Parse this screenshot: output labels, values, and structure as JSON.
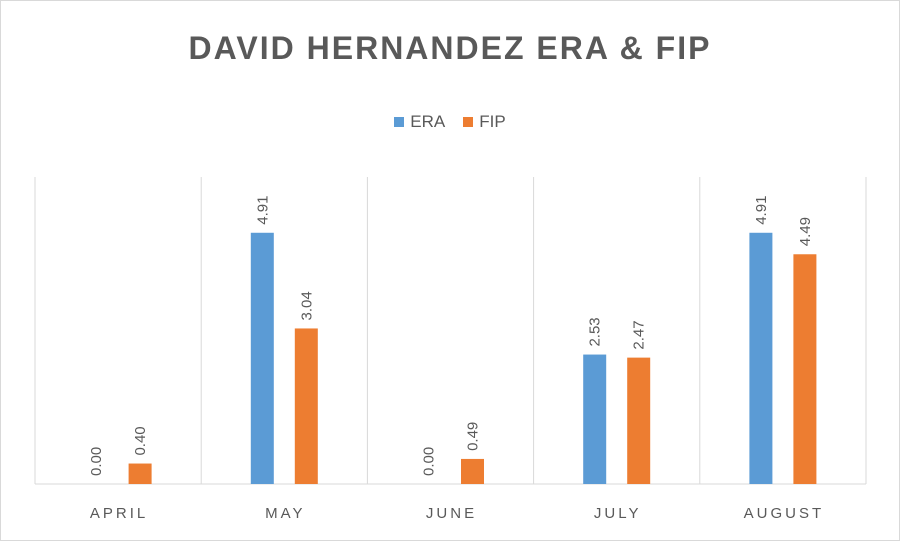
{
  "chart_data": {
    "type": "bar",
    "title": "DAVID HERNANDEZ  ERA & FIP",
    "categories": [
      "APRIL",
      "MAY",
      "JUNE",
      "JULY",
      "AUGUST"
    ],
    "series": [
      {
        "name": "ERA",
        "color": "#5b9bd5",
        "values": [
          0.0,
          4.91,
          0.0,
          2.53,
          4.91
        ],
        "labels": [
          "0.00",
          "4.91",
          "0.00",
          "2.53",
          "4.91"
        ]
      },
      {
        "name": "FIP",
        "color": "#ed7d31",
        "values": [
          0.4,
          3.04,
          0.49,
          2.47,
          4.49
        ],
        "labels": [
          "0.40",
          "3.04",
          "0.49",
          "2.47",
          "4.49"
        ]
      }
    ],
    "xlabel": "",
    "ylabel": "",
    "ylim": [
      0,
      6
    ],
    "grid": "vertical category separators",
    "legend": "top-center",
    "data_labels": "rotated, above bars"
  }
}
